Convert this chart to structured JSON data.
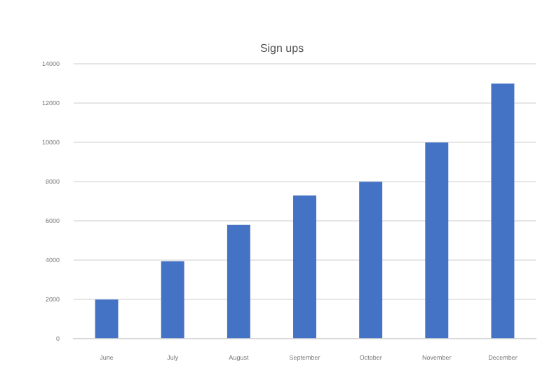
{
  "chart_data": {
    "type": "bar",
    "title": "Sign ups",
    "categories": [
      "June",
      "July",
      "August",
      "September",
      "October",
      "November",
      "December"
    ],
    "values": [
      2000,
      3950,
      5800,
      7300,
      8000,
      10000,
      13000
    ],
    "color": "#4472c4",
    "ylim": [
      0,
      14000
    ],
    "yticks": [
      0,
      2000,
      4000,
      6000,
      8000,
      10000,
      12000,
      14000
    ],
    "grid": "y"
  }
}
